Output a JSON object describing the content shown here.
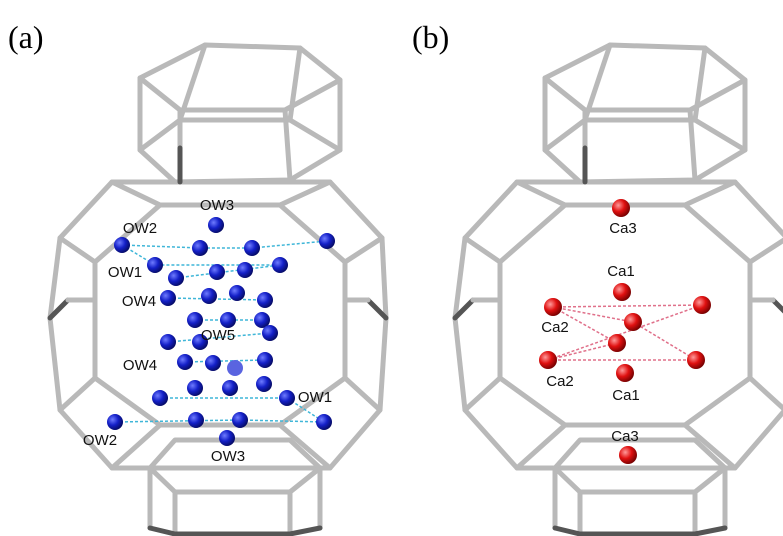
{
  "panels": [
    {
      "label": "(a)",
      "atom_labels": [
        "OW3",
        "OW2",
        "OW1",
        "OW4",
        "OW5",
        "OW4",
        "OW1",
        "OW2",
        "OW3"
      ]
    },
    {
      "label": "(b)",
      "atom_labels": [
        "Ca3",
        "Ca1",
        "Ca2",
        "Ca2",
        "Ca1",
        "Ca3"
      ]
    }
  ]
}
